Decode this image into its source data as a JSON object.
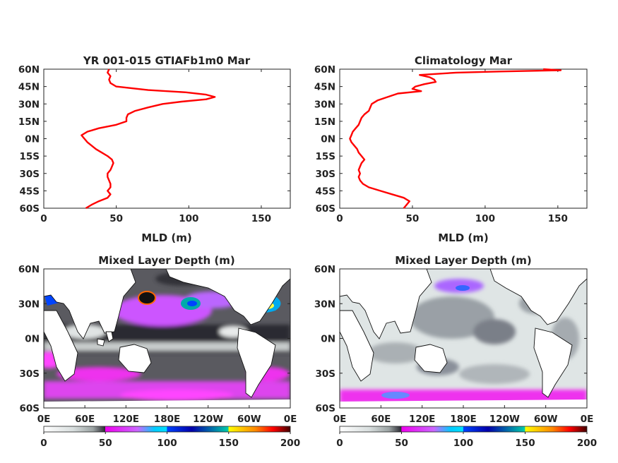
{
  "chart_data": [
    {
      "type": "line",
      "title": "YR 001-015 GTIAFb1m0 Mar",
      "xlabel": "MLD (m)",
      "xlim": [
        0,
        170
      ],
      "ylim": [
        -60,
        60
      ],
      "xticks": [
        "0",
        "50",
        "100",
        "150"
      ],
      "yticks": [
        "60N",
        "45N",
        "30N",
        "15N",
        "0N",
        "15S",
        "30S",
        "45S",
        "60S"
      ],
      "line_color": "#ff0000",
      "series": [
        {
          "lat": [
            60,
            57,
            54,
            51,
            48,
            45,
            42,
            40,
            38,
            36,
            34,
            32,
            30,
            27,
            24,
            21,
            18,
            15,
            12,
            9,
            6,
            3,
            0,
            -3,
            -6,
            -9,
            -12,
            -15,
            -18,
            -21,
            -24,
            -27,
            -30,
            -33,
            -36,
            -39,
            -42,
            -45,
            -48,
            -51,
            -54,
            -57,
            -60
          ],
          "mld": [
            45,
            44,
            46,
            45,
            46,
            50,
            72,
            98,
            112,
            118,
            112,
            95,
            82,
            72,
            63,
            58,
            57,
            57,
            50,
            38,
            30,
            26,
            28,
            30,
            33,
            36,
            40,
            44,
            47,
            48,
            47,
            46,
            44,
            44,
            45,
            46,
            46,
            44,
            46,
            44,
            38,
            33,
            29
          ]
        }
      ]
    },
    {
      "type": "line",
      "title": "Climatology Mar",
      "xlabel": "MLD (m)",
      "xlim": [
        0,
        170
      ],
      "ylim": [
        -60,
        60
      ],
      "xticks": [
        "0",
        "50",
        "100",
        "150"
      ],
      "yticks": [
        "60N",
        "45N",
        "30N",
        "15N",
        "0N",
        "15S",
        "30S",
        "45S",
        "60S"
      ],
      "line_color": "#ff0000",
      "series": [
        {
          "lat": [
            60,
            59,
            58,
            57,
            55,
            53,
            51,
            49,
            47,
            45,
            43,
            41,
            39,
            36,
            33,
            30,
            27,
            24,
            21,
            18,
            15,
            12,
            9,
            6,
            3,
            0,
            -3,
            -6,
            -9,
            -12,
            -15,
            -18,
            -21,
            -24,
            -27,
            -30,
            -33,
            -36,
            -39,
            -42,
            -45,
            -48,
            -51,
            -54,
            -57,
            -60
          ],
          "mld": [
            140,
            152,
            110,
            80,
            55,
            62,
            65,
            66,
            58,
            52,
            50,
            56,
            40,
            33,
            26,
            22,
            21,
            20,
            17,
            15,
            14,
            13,
            11,
            9,
            8,
            7,
            8,
            10,
            12,
            13,
            15,
            17,
            15,
            14,
            13,
            14,
            13,
            14,
            16,
            20,
            28,
            36,
            44,
            48,
            46,
            44
          ]
        }
      ]
    },
    {
      "type": "heatmap",
      "title": "Mixed Layer Depth (m)",
      "yticks": [
        "60N",
        "30N",
        "0N",
        "30S",
        "60S"
      ],
      "xticks": [
        "0E",
        "60E",
        "120E",
        "180E",
        "120W",
        "60W",
        "0E"
      ],
      "colorbar_ticks": [
        "0",
        "50",
        "100",
        "150",
        "200"
      ],
      "colorbar_range": [
        0,
        200
      ]
    },
    {
      "type": "heatmap",
      "title": "Mixed Layer Depth (m)",
      "yticks": [
        "60N",
        "30N",
        "0N",
        "30S",
        "60S"
      ],
      "xticks": [
        "0E",
        "60E",
        "120E",
        "180E",
        "120W",
        "60W",
        "0E"
      ],
      "colorbar_ticks": [
        "0",
        "50",
        "100",
        "150",
        "200"
      ],
      "colorbar_range": [
        0,
        200
      ]
    }
  ],
  "colorbar_colors": [
    "#ffffff",
    "#d8dede",
    "#a0a8a8",
    "#505058",
    "#1a1a22",
    "#ee00ee",
    "#cc66ff",
    "#00ccff",
    "#0044ff",
    "#0000aa",
    "#00ccaa",
    "#ffff00",
    "#ff8800",
    "#ff0000",
    "#660000"
  ],
  "ocean_gray": "#5a5a60",
  "land_color": "#ffffff",
  "accent_magenta": "#ff33ff"
}
